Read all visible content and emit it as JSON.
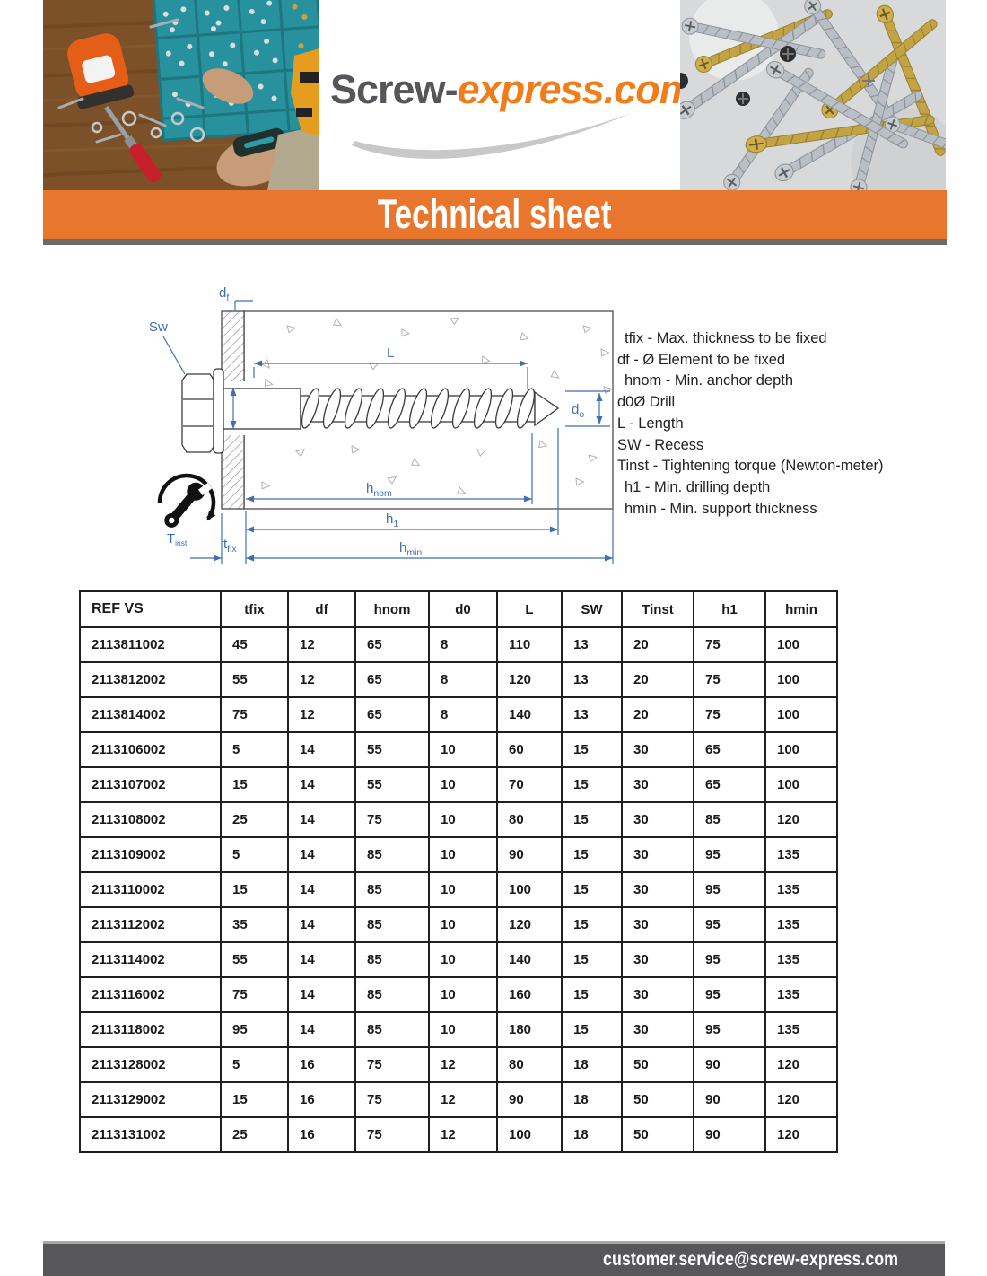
{
  "header": {
    "logo": {
      "part1": "Screw-",
      "part2": "express.com"
    },
    "banner_title": "Technical sheet"
  },
  "diagram": {
    "labels": {
      "sw": "Sw",
      "df": {
        "main": "d",
        "sub": "f"
      },
      "l": "L",
      "d0": {
        "main": "d",
        "sub": "o"
      },
      "hnom": {
        "main": "h",
        "sub": "nom"
      },
      "h1": {
        "main": "h",
        "sub": "1"
      },
      "hmin": {
        "main": "h",
        "sub": "min"
      },
      "tfix": {
        "main": "t",
        "sub": "fix"
      },
      "tinst": {
        "main": "T",
        "sub": "inst"
      }
    },
    "legend": [
      "tfix - Max. thickness to be fixed",
      "df - Ø Element to be fixed",
      "hnom - Min. anchor depth",
      "d0Ø Drill",
      "L - Length",
      "SW - Recess",
      "Tinst - Tightening torque (Newton-meter)",
      "h1 - Min. drilling depth",
      "hmin - Min. support thickness"
    ]
  },
  "table": {
    "headers": [
      "REF VS",
      "tfix",
      "df",
      "hnom",
      "d0",
      "L",
      "SW",
      "Tinst",
      "h1",
      "hmin"
    ],
    "rows": [
      [
        "2113811002",
        "45",
        "12",
        "65",
        "8",
        "110",
        "13",
        "20",
        "75",
        "100"
      ],
      [
        "2113812002",
        "55",
        "12",
        "65",
        "8",
        "120",
        "13",
        "20",
        "75",
        "100"
      ],
      [
        "2113814002",
        "75",
        "12",
        "65",
        "8",
        "140",
        "13",
        "20",
        "75",
        "100"
      ],
      [
        "2113106002",
        "5",
        "14",
        "55",
        "10",
        "60",
        "15",
        "30",
        "65",
        "100"
      ],
      [
        "2113107002",
        "15",
        "14",
        "55",
        "10",
        "70",
        "15",
        "30",
        "65",
        "100"
      ],
      [
        "2113108002",
        "25",
        "14",
        "75",
        "10",
        "80",
        "15",
        "30",
        "85",
        "120"
      ],
      [
        "2113109002",
        "5",
        "14",
        "85",
        "10",
        "90",
        "15",
        "30",
        "95",
        "135"
      ],
      [
        "2113110002",
        "15",
        "14",
        "85",
        "10",
        "100",
        "15",
        "30",
        "95",
        "135"
      ],
      [
        "2113112002",
        "35",
        "14",
        "85",
        "10",
        "120",
        "15",
        "30",
        "95",
        "135"
      ],
      [
        "2113114002",
        "55",
        "14",
        "85",
        "10",
        "140",
        "15",
        "30",
        "95",
        "135"
      ],
      [
        "2113116002",
        "75",
        "14",
        "85",
        "10",
        "160",
        "15",
        "30",
        "95",
        "135"
      ],
      [
        "2113118002",
        "95",
        "14",
        "85",
        "10",
        "180",
        "15",
        "30",
        "95",
        "135"
      ],
      [
        "2113128002",
        "5",
        "16",
        "75",
        "12",
        "80",
        "18",
        "50",
        "90",
        "120"
      ],
      [
        "2113129002",
        "15",
        "16",
        "75",
        "12",
        "90",
        "18",
        "50",
        "90",
        "120"
      ],
      [
        "2113131002",
        "25",
        "16",
        "75",
        "12",
        "100",
        "18",
        "50",
        "90",
        "120"
      ]
    ]
  },
  "footer": {
    "email": "customer.service@screw-express.com"
  },
  "colors": {
    "accent_orange": "#e8762c",
    "logo_orange": "#ef7d1a",
    "dark_gray": "#57575a",
    "diagram_blue": "#3f6fb0"
  }
}
